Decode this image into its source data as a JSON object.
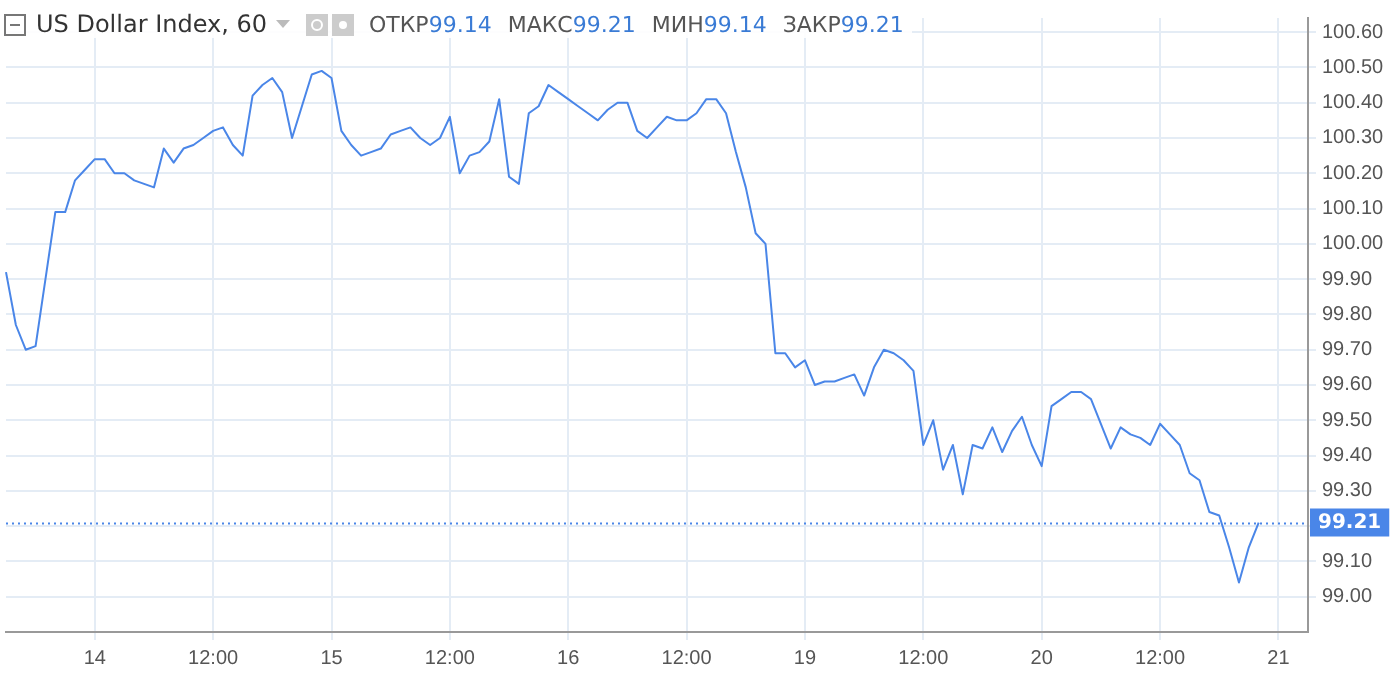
{
  "chart_data": {
    "type": "line",
    "title": "US Dollar Index, 60",
    "annotations": [
      "ОТКР99.14",
      "МАКС99.21",
      "МИН99.14",
      "ЗАКР99.21"
    ],
    "categories": [
      null,
      null,
      null,
      null,
      null,
      null,
      null,
      null,
      null,
      "14",
      null,
      null,
      null,
      null,
      null,
      null,
      null,
      null,
      null,
      null,
      null,
      "12:00",
      null,
      null,
      null,
      null,
      null,
      null,
      null,
      null,
      null,
      null,
      null,
      "15",
      null,
      null,
      null,
      null,
      null,
      null,
      null,
      null,
      null,
      null,
      null,
      "12:00",
      null,
      null,
      null,
      null,
      null,
      null,
      null,
      null,
      null,
      null,
      null,
      "16",
      null,
      null,
      null,
      null,
      null,
      null,
      null,
      null,
      null,
      null,
      null,
      "12:00",
      null,
      null,
      null,
      null,
      null,
      null,
      null,
      null,
      null,
      null,
      null,
      "19",
      null,
      null,
      null,
      null,
      null,
      null,
      null,
      null,
      null,
      null,
      null,
      "12:00",
      null,
      null,
      null,
      null,
      null,
      null,
      null,
      null,
      null,
      null,
      null,
      "20",
      null,
      null,
      null,
      null,
      null,
      null,
      null,
      null,
      null,
      null,
      null,
      "12:00",
      null,
      null,
      null,
      null,
      null,
      null,
      null,
      null,
      null,
      null,
      null,
      "21",
      null,
      null,
      null
    ],
    "series": [
      {
        "color": "#4a86e8",
        "values": [
          99.92,
          99.77,
          99.7,
          99.71,
          99.9,
          100.09,
          100.09,
          100.18,
          100.21,
          100.24,
          100.24,
          100.2,
          100.2,
          100.18,
          100.17,
          100.16,
          100.27,
          100.23,
          100.27,
          100.28,
          100.3,
          100.32,
          100.33,
          100.28,
          100.25,
          100.42,
          100.45,
          100.47,
          100.43,
          100.3,
          100.39,
          100.48,
          100.49,
          100.47,
          100.32,
          100.28,
          100.25,
          100.26,
          100.27,
          100.31,
          100.32,
          100.33,
          100.3,
          100.28,
          100.3,
          100.36,
          100.2,
          100.25,
          100.26,
          100.29,
          100.41,
          100.19,
          100.17,
          100.37,
          100.39,
          100.45,
          100.43,
          100.41,
          100.39,
          100.37,
          100.35,
          100.38,
          100.4,
          100.4,
          100.32,
          100.3,
          100.33,
          100.36,
          100.35,
          100.35,
          100.37,
          100.41,
          100.41,
          100.37,
          100.26,
          100.16,
          100.03,
          100.0,
          99.69,
          99.69,
          99.65,
          99.67,
          99.6,
          99.61,
          99.61,
          99.62,
          99.63,
          99.57,
          99.65,
          99.7,
          99.69,
          99.67,
          99.64,
          99.43,
          99.5,
          99.36,
          99.43,
          99.29,
          99.43,
          99.42,
          99.48,
          99.41,
          99.47,
          99.51,
          99.43,
          99.37,
          99.54,
          99.56,
          99.58,
          99.58,
          99.56,
          99.49,
          99.42,
          99.48,
          99.46,
          99.45,
          99.43,
          99.49,
          99.46,
          99.43,
          99.35,
          99.33,
          99.24,
          99.23,
          99.14,
          99.04,
          99.14,
          99.21,
          null,
          null,
          null,
          null,
          null
        ]
      }
    ],
    "ylim": [
      98.9,
      100.64
    ],
    "yticks": [
      {
        "value": 99.0,
        "label": "99.00"
      },
      {
        "value": 99.1,
        "label": "99.10"
      },
      {
        "value": 99.2,
        "label": null
      },
      {
        "value": 99.3,
        "label": "99.30"
      },
      {
        "value": 99.4,
        "label": "99.40"
      },
      {
        "value": 99.5,
        "label": "99.50"
      },
      {
        "value": 99.6,
        "label": "99.60"
      },
      {
        "value": 99.7,
        "label": "99.70"
      },
      {
        "value": 99.8,
        "label": "99.80"
      },
      {
        "value": 99.9,
        "label": "99.90"
      },
      {
        "value": 100.0,
        "label": "100.00"
      },
      {
        "value": 100.1,
        "label": "100.10"
      },
      {
        "value": 100.2,
        "label": "100.20"
      },
      {
        "value": 100.3,
        "label": "100.30"
      },
      {
        "value": 100.4,
        "label": "100.40"
      },
      {
        "value": 100.5,
        "label": "100.50"
      },
      {
        "value": 100.6,
        "label": "100.60"
      }
    ],
    "ref_lines": [
      {
        "axis": "y",
        "value": 99.21,
        "label": "99.21",
        "color": "#4a86e8",
        "line_style": "dotted"
      }
    ],
    "grid": true
  }
}
